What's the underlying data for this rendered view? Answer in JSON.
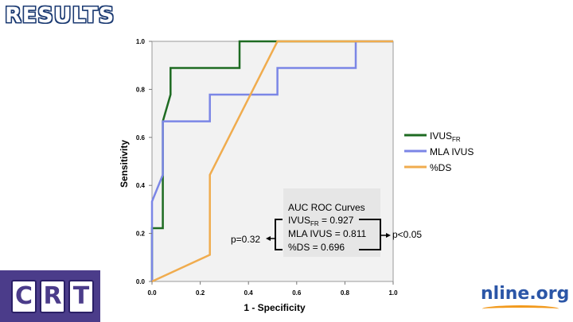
{
  "slide": {
    "title": "RESULTS",
    "footer_left_logo": "CRT",
    "footer_left_letters": [
      "C",
      "R",
      "T"
    ],
    "footer_right_logo": "nline.org"
  },
  "colors": {
    "ivus_fr": "#1e6b22",
    "mla_ivus": "#7b86e6",
    "ds": "#f0ac4e",
    "plot_bg": "#f2f2f2",
    "footer": "#4b3c8a",
    "title_outline": "#1b3a72"
  },
  "chart_data": {
    "type": "line",
    "title": "",
    "xlabel": "1 - Specificity",
    "ylabel": "Sensitivity",
    "xlim": [
      0,
      1
    ],
    "ylim": [
      0,
      1
    ],
    "xticks": [
      "0.0",
      "0.2",
      "0.4",
      "0.6",
      "0.8",
      "1.0"
    ],
    "yticks": [
      "0.0",
      "0.2",
      "0.4",
      "0.6",
      "0.8",
      "1.0"
    ],
    "grid": false,
    "legend_position": "right",
    "series": [
      {
        "name": "IVUS",
        "subscript": "FR",
        "color": "#1e6b22",
        "points": [
          [
            0,
            0
          ],
          [
            0,
            0.222
          ],
          [
            0.045,
            0.222
          ],
          [
            0.045,
            0.667
          ],
          [
            0.077,
            0.778
          ],
          [
            0.077,
            0.889
          ],
          [
            0.363,
            0.889
          ],
          [
            0.363,
            1.0
          ],
          [
            1.0,
            1.0
          ]
        ]
      },
      {
        "name": "MLA IVUS",
        "subscript": "",
        "color": "#7b86e6",
        "points": [
          [
            0,
            0
          ],
          [
            0,
            0.333
          ],
          [
            0.045,
            0.444
          ],
          [
            0.045,
            0.667
          ],
          [
            0.24,
            0.667
          ],
          [
            0.24,
            0.778
          ],
          [
            0.52,
            0.778
          ],
          [
            0.52,
            0.889
          ],
          [
            0.845,
            0.889
          ],
          [
            0.845,
            1.0
          ],
          [
            1.0,
            1.0
          ]
        ]
      },
      {
        "name": "%DS",
        "subscript": "",
        "color": "#f0ac4e",
        "points": [
          [
            0,
            0
          ],
          [
            0.24,
            0.111
          ],
          [
            0.24,
            0.444
          ],
          [
            0.52,
            1.0
          ],
          [
            1.0,
            1.0
          ]
        ]
      }
    ],
    "annotation": {
      "heading": "AUC ROC Curves",
      "rows": [
        {
          "name": "IVUS",
          "subscript": "FR",
          "rest": " = 0.927"
        },
        {
          "name": "MLA IVUS",
          "subscript": "",
          "rest": " = 0.811"
        },
        {
          "name": "%DS",
          "subscript": "",
          "rest": " = 0.696"
        }
      ],
      "left_p": "p=0.32",
      "right_p": "p<0.05"
    }
  }
}
